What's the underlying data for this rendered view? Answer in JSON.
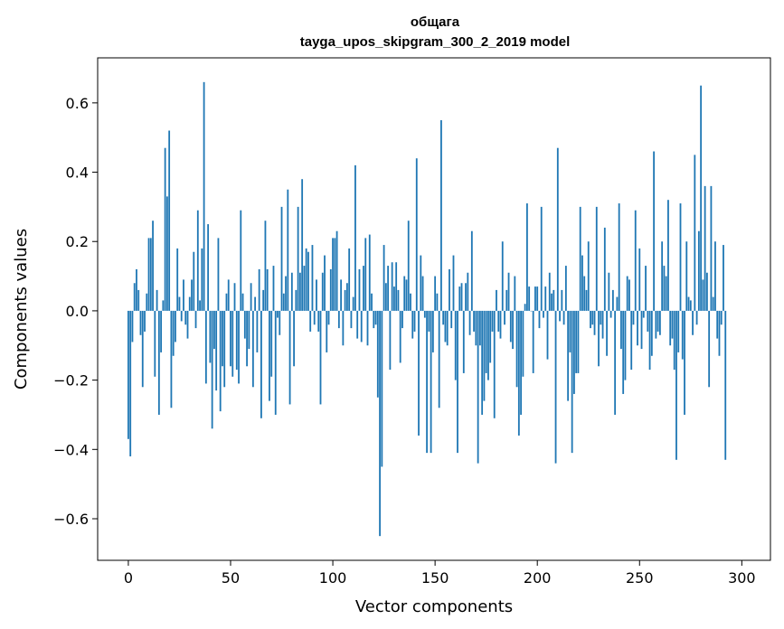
{
  "chart_data": {
    "type": "bar",
    "title": "общага",
    "subtitle": "tayga_upos_skipgram_300_2_2019 model",
    "xlabel": "Vector components",
    "ylabel": "Components values",
    "xlim": [
      -15,
      314
    ],
    "ylim": [
      -0.72,
      0.73
    ],
    "xticks": [
      0,
      50,
      100,
      150,
      200,
      250,
      300
    ],
    "xtick_labels": [
      "0",
      "50",
      "100",
      "150",
      "200",
      "250",
      "300"
    ],
    "yticks": [
      -0.6,
      -0.4,
      -0.2,
      0.0,
      0.2,
      0.4,
      0.6
    ],
    "ytick_labels": [
      "−0.6",
      "−0.4",
      "−0.2",
      "0.0",
      "0.2",
      "0.4",
      "0.6"
    ],
    "bar_color": "#1f77b4",
    "grid": false,
    "legend": false,
    "x_start": 0,
    "values": [
      -0.37,
      -0.42,
      -0.09,
      0.08,
      0.12,
      0.06,
      -0.07,
      -0.22,
      -0.06,
      0.05,
      0.21,
      0.21,
      0.26,
      -0.19,
      0.06,
      -0.3,
      -0.12,
      0.03,
      0.47,
      0.33,
      0.52,
      -0.28,
      -0.13,
      -0.09,
      0.18,
      0.04,
      -0.03,
      0.09,
      -0.04,
      -0.08,
      0.04,
      0.09,
      0.17,
      -0.05,
      0.29,
      0.03,
      0.18,
      0.66,
      -0.21,
      0.25,
      -0.15,
      -0.34,
      -0.11,
      -0.23,
      0.21,
      -0.29,
      -0.16,
      -0.22,
      0.05,
      0.09,
      -0.16,
      -0.19,
      0.08,
      -0.17,
      -0.21,
      0.29,
      0.05,
      -0.08,
      -0.16,
      -0.11,
      0.08,
      -0.22,
      0.04,
      -0.12,
      0.12,
      -0.31,
      0.06,
      0.26,
      0.12,
      -0.26,
      -0.19,
      0.13,
      -0.3,
      -0.02,
      -0.07,
      0.3,
      0.05,
      0.1,
      0.35,
      -0.27,
      0.11,
      -0.16,
      0.06,
      0.3,
      0.11,
      0.38,
      0.13,
      0.18,
      0.17,
      -0.06,
      0.19,
      -0.04,
      0.09,
      -0.06,
      -0.27,
      0.11,
      0.16,
      -0.12,
      -0.04,
      0.12,
      0.21,
      0.21,
      0.23,
      -0.05,
      0.09,
      -0.1,
      0.06,
      0.08,
      0.18,
      -0.05,
      0.04,
      0.42,
      -0.08,
      0.12,
      -0.09,
      0.13,
      0.21,
      -0.1,
      0.22,
      0.05,
      -0.05,
      -0.04,
      -0.25,
      -0.65,
      -0.45,
      0.19,
      0.08,
      0.13,
      -0.17,
      0.14,
      0.07,
      0.14,
      0.06,
      -0.15,
      -0.05,
      0.1,
      0.09,
      0.26,
      0.05,
      -0.08,
      -0.06,
      0.44,
      -0.36,
      0.16,
      0.1,
      -0.02,
      -0.41,
      -0.06,
      -0.41,
      -0.12,
      0.1,
      0.05,
      -0.28,
      0.55,
      -0.04,
      -0.09,
      -0.1,
      0.12,
      -0.05,
      0.16,
      -0.2,
      -0.41,
      0.07,
      0.08,
      -0.18,
      0.08,
      0.11,
      -0.07,
      0.23,
      -0.06,
      -0.1,
      -0.44,
      -0.1,
      -0.3,
      -0.26,
      -0.18,
      -0.2,
      -0.15,
      -0.06,
      -0.31,
      0.06,
      -0.06,
      -0.08,
      0.2,
      -0.04,
      0.06,
      0.11,
      -0.09,
      -0.11,
      0.1,
      -0.22,
      -0.36,
      -0.3,
      -0.19,
      0.02,
      0.31,
      0.07,
      0.0,
      -0.18,
      0.07,
      0.07,
      -0.05,
      0.3,
      -0.02,
      0.07,
      -0.14,
      0.11,
      0.05,
      0.06,
      -0.44,
      0.47,
      -0.03,
      0.06,
      -0.04,
      0.13,
      -0.26,
      -0.12,
      -0.41,
      -0.24,
      -0.18,
      -0.18,
      0.3,
      0.16,
      0.1,
      0.06,
      0.2,
      -0.05,
      -0.04,
      -0.07,
      0.3,
      -0.16,
      -0.04,
      -0.08,
      0.24,
      -0.13,
      0.11,
      -0.02,
      0.06,
      -0.3,
      0.04,
      0.31,
      -0.11,
      -0.24,
      -0.2,
      0.1,
      0.09,
      -0.17,
      -0.04,
      0.29,
      -0.1,
      0.18,
      -0.11,
      -0.02,
      0.13,
      -0.06,
      -0.17,
      -0.13,
      0.46,
      -0.08,
      -0.06,
      -0.07,
      0.2,
      0.13,
      0.1,
      0.32,
      -0.1,
      -0.08,
      -0.17,
      -0.43,
      -0.12,
      0.31,
      -0.14,
      -0.3,
      0.2,
      0.04,
      0.03,
      -0.07,
      0.45,
      -0.04,
      0.23,
      0.65,
      0.09,
      0.36,
      0.11,
      -0.22,
      0.36,
      0.04,
      0.2,
      -0.08,
      -0.13,
      -0.04,
      0.19,
      -0.43
    ]
  }
}
